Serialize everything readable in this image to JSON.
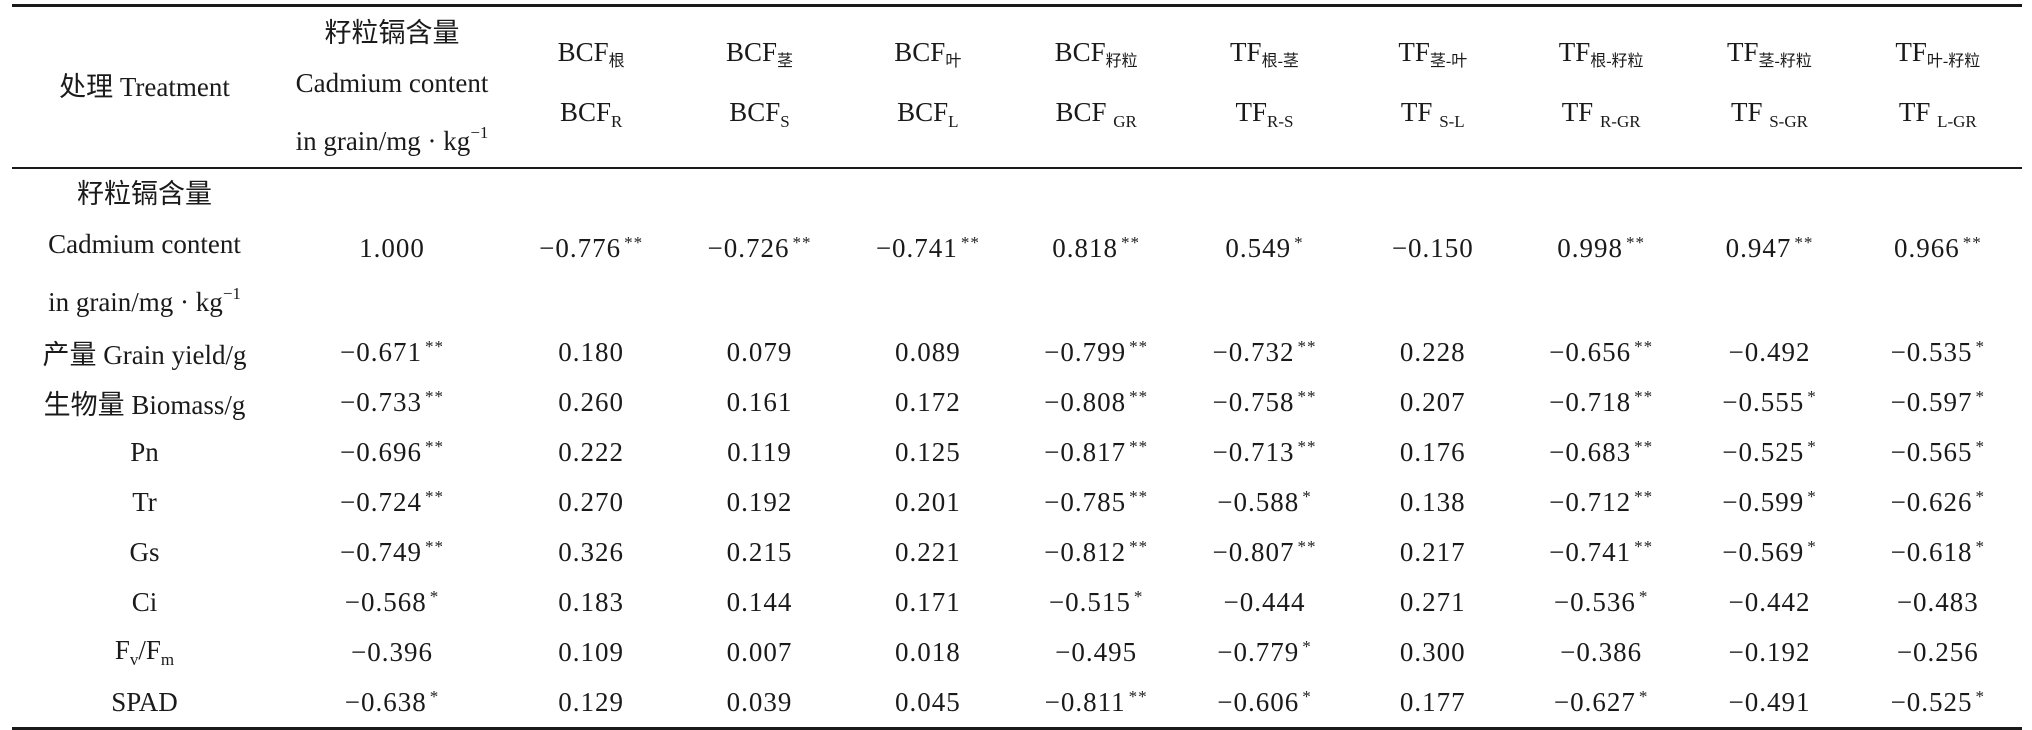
{
  "table": {
    "header": {
      "treatment": "处理 Treatment",
      "cd_line1": "籽粒镉含量",
      "cd_line2": "Cadmium content",
      "cd_line3": "in grain/mg · kg",
      "cd_line3_sup": "−1",
      "columns": [
        {
          "top_main": "BCF",
          "top_sub": "根",
          "bot_main": "BCF",
          "bot_sub": "R"
        },
        {
          "top_main": "BCF",
          "top_sub": "茎",
          "bot_main": "BCF",
          "bot_sub": "S"
        },
        {
          "top_main": "BCF",
          "top_sub": "叶",
          "bot_main": "BCF",
          "bot_sub": "L"
        },
        {
          "top_main": "BCF",
          "top_sub": "籽粒",
          "bot_main": "BCF ",
          "bot_sub": "GR"
        },
        {
          "top_main": "TF",
          "top_sub": "根-茎",
          "bot_main": "TF",
          "bot_sub": "R-S"
        },
        {
          "top_main": "TF",
          "top_sub": "茎-叶",
          "bot_main": "TF ",
          "bot_sub": "S-L"
        },
        {
          "top_main": "TF",
          "top_sub": "根-籽粒",
          "bot_main": "TF ",
          "bot_sub": "R-GR"
        },
        {
          "top_main": "TF",
          "top_sub": "茎-籽粒",
          "bot_main": "TF ",
          "bot_sub": "S-GR"
        },
        {
          "top_main": "TF",
          "top_sub": "叶-籽粒",
          "bot_main": "TF ",
          "bot_sub": "L-GR"
        }
      ]
    },
    "rows": [
      {
        "label_lines": [
          "籽粒镉含量",
          "Cadmium content",
          "in grain/mg · kg"
        ],
        "label_sup": "−1",
        "cells": [
          {
            "v": "1.000",
            "s": ""
          },
          {
            "v": "−0.776",
            "s": "**"
          },
          {
            "v": "−0.726",
            "s": "**"
          },
          {
            "v": "−0.741",
            "s": "**"
          },
          {
            "v": "0.818",
            "s": "**"
          },
          {
            "v": "0.549",
            "s": "*"
          },
          {
            "v": "−0.150",
            "s": ""
          },
          {
            "v": "0.998",
            "s": "**"
          },
          {
            "v": "0.947",
            "s": "**"
          },
          {
            "v": "0.966",
            "s": "**"
          }
        ]
      },
      {
        "label": "产量 Grain yield/g",
        "cells": [
          {
            "v": "−0.671",
            "s": "**"
          },
          {
            "v": "0.180",
            "s": ""
          },
          {
            "v": "0.079",
            "s": ""
          },
          {
            "v": "0.089",
            "s": ""
          },
          {
            "v": "−0.799",
            "s": "**"
          },
          {
            "v": "−0.732",
            "s": "**"
          },
          {
            "v": "0.228",
            "s": ""
          },
          {
            "v": "−0.656",
            "s": "**"
          },
          {
            "v": "−0.492",
            "s": ""
          },
          {
            "v": "−0.535",
            "s": "*"
          }
        ]
      },
      {
        "label": "生物量 Biomass/g",
        "cells": [
          {
            "v": "−0.733",
            "s": "**"
          },
          {
            "v": "0.260",
            "s": ""
          },
          {
            "v": "0.161",
            "s": ""
          },
          {
            "v": "0.172",
            "s": ""
          },
          {
            "v": "−0.808",
            "s": "**"
          },
          {
            "v": "−0.758",
            "s": "**"
          },
          {
            "v": "0.207",
            "s": ""
          },
          {
            "v": "−0.718",
            "s": "**"
          },
          {
            "v": "−0.555",
            "s": "*"
          },
          {
            "v": "−0.597",
            "s": "*"
          }
        ]
      },
      {
        "label": "Pn",
        "cells": [
          {
            "v": "−0.696",
            "s": "**"
          },
          {
            "v": "0.222",
            "s": ""
          },
          {
            "v": "0.119",
            "s": ""
          },
          {
            "v": "0.125",
            "s": ""
          },
          {
            "v": "−0.817",
            "s": "**"
          },
          {
            "v": "−0.713",
            "s": "**"
          },
          {
            "v": "0.176",
            "s": ""
          },
          {
            "v": "−0.683",
            "s": "**"
          },
          {
            "v": "−0.525",
            "s": "*"
          },
          {
            "v": "−0.565",
            "s": "*"
          }
        ]
      },
      {
        "label": "Tr",
        "cells": [
          {
            "v": "−0.724",
            "s": "**"
          },
          {
            "v": "0.270",
            "s": ""
          },
          {
            "v": "0.192",
            "s": ""
          },
          {
            "v": "0.201",
            "s": ""
          },
          {
            "v": "−0.785",
            "s": "**"
          },
          {
            "v": "−0.588",
            "s": "*"
          },
          {
            "v": "0.138",
            "s": ""
          },
          {
            "v": "−0.712",
            "s": "**"
          },
          {
            "v": "−0.599",
            "s": "*"
          },
          {
            "v": "−0.626",
            "s": "*"
          }
        ]
      },
      {
        "label": "Gs",
        "cells": [
          {
            "v": "−0.749",
            "s": "**"
          },
          {
            "v": "0.326",
            "s": ""
          },
          {
            "v": "0.215",
            "s": ""
          },
          {
            "v": "0.221",
            "s": ""
          },
          {
            "v": "−0.812",
            "s": "**"
          },
          {
            "v": "−0.807",
            "s": "**"
          },
          {
            "v": "0.217",
            "s": ""
          },
          {
            "v": "−0.741",
            "s": "**"
          },
          {
            "v": "−0.569",
            "s": "*"
          },
          {
            "v": "−0.618",
            "s": "*"
          }
        ]
      },
      {
        "label": "Ci",
        "cells": [
          {
            "v": "−0.568",
            "s": "*"
          },
          {
            "v": "0.183",
            "s": ""
          },
          {
            "v": "0.144",
            "s": ""
          },
          {
            "v": "0.171",
            "s": ""
          },
          {
            "v": "−0.515",
            "s": "*"
          },
          {
            "v": "−0.444",
            "s": ""
          },
          {
            "v": "0.271",
            "s": ""
          },
          {
            "v": "−0.536",
            "s": "*"
          },
          {
            "v": "−0.442",
            "s": ""
          },
          {
            "v": "−0.483",
            "s": ""
          }
        ]
      },
      {
        "label_main": "F",
        "label_sub1": "v",
        "label_mid": "/F",
        "label_sub2": "m",
        "cells": [
          {
            "v": "−0.396",
            "s": ""
          },
          {
            "v": "0.109",
            "s": ""
          },
          {
            "v": "0.007",
            "s": ""
          },
          {
            "v": "0.018",
            "s": ""
          },
          {
            "v": "−0.495",
            "s": ""
          },
          {
            "v": "−0.779",
            "s": "*"
          },
          {
            "v": "0.300",
            "s": ""
          },
          {
            "v": "−0.386",
            "s": ""
          },
          {
            "v": "−0.192",
            "s": ""
          },
          {
            "v": "−0.256",
            "s": ""
          }
        ]
      },
      {
        "label": "SPAD",
        "cells": [
          {
            "v": "−0.638",
            "s": "*"
          },
          {
            "v": "0.129",
            "s": ""
          },
          {
            "v": "0.039",
            "s": ""
          },
          {
            "v": "0.045",
            "s": ""
          },
          {
            "v": "−0.811",
            "s": "**"
          },
          {
            "v": "−0.606",
            "s": "*"
          },
          {
            "v": "0.177",
            "s": ""
          },
          {
            "v": "−0.627",
            "s": "*"
          },
          {
            "v": "−0.491",
            "s": ""
          },
          {
            "v": "−0.525",
            "s": "*"
          }
        ]
      }
    ]
  }
}
